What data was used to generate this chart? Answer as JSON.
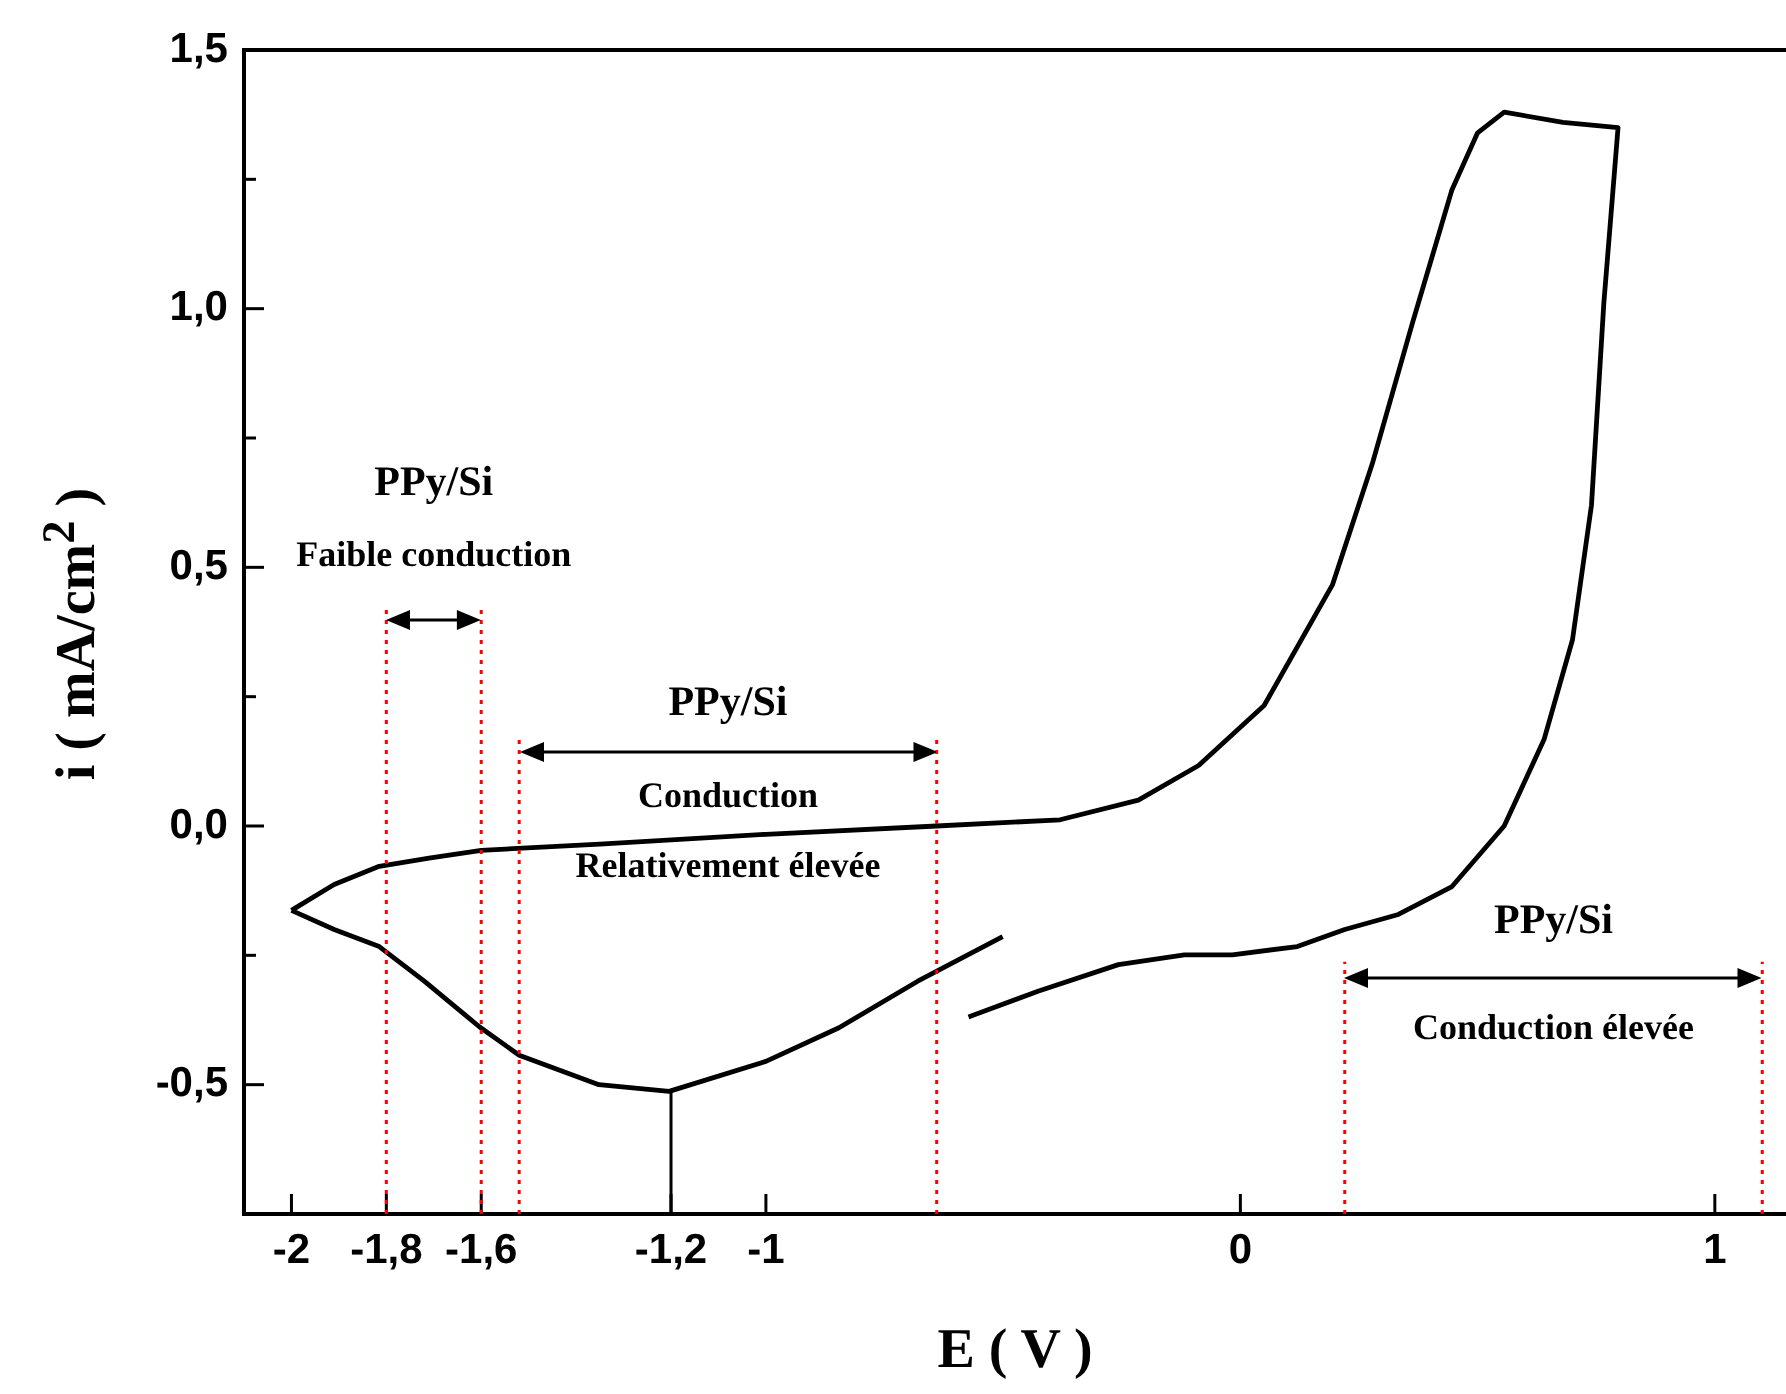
{
  "chart_data": {
    "type": "line",
    "xlabel": "E ( V )",
    "ylabel": "i ( mA/cm$^{2}$ )",
    "xlim": [
      -2.1,
      1.15
    ],
    "ylim": [
      -0.75,
      1.5
    ],
    "xticks": [
      -2,
      {
        "value": -1.8,
        "label": "-1,8"
      },
      {
        "value": -1.6,
        "label": "-1,6"
      },
      {
        "value": -1.2,
        "label": "-1,2"
      },
      -1,
      0,
      1
    ],
    "yticks": [
      {
        "value": -0.5,
        "label": "-0,5"
      },
      {
        "value": -0.25,
        "label": null
      },
      {
        "value": 0,
        "label": "0,0"
      },
      {
        "value": 0.25,
        "label": null
      },
      {
        "value": 0.5,
        "label": "0,5"
      },
      {
        "value": 0.75,
        "label": null
      },
      {
        "value": 1,
        "label": "1,0"
      },
      {
        "value": 1.25,
        "label": null
      },
      {
        "value": 1.5,
        "label": "1,5"
      }
    ],
    "marker": "none",
    "line_style": "solid",
    "series": [
      {
        "type": "line",
        "color": "#000000",
        "x": [
          -2,
          -1.91,
          -1.815,
          -1.71,
          -1.6,
          -1.35,
          -1,
          -0.64,
          -0.38,
          -0.215,
          -0.088,
          0.05,
          0.194,
          0.278,
          0.362,
          0.446,
          0.5,
          0.556,
          0.68,
          0.796,
          0.766,
          0.74,
          0.7,
          0.64,
          0.556,
          0.446,
          0.333,
          0.22,
          0.12,
          -0.017,
          -0.118,
          -0.257,
          -0.425,
          -0.573,
          -0.54,
          -0.501,
          -0.68,
          -0.846,
          -1,
          -1.204,
          -1.352,
          -1.52,
          -1.604,
          -1.72,
          -1.815,
          -1.91,
          -2
        ],
        "values": [
          -0.163,
          -0.113,
          -0.078,
          -0.062,
          -0.047,
          -0.035,
          -0.016,
          0,
          0.012,
          0.05,
          0.117,
          0.233,
          0.466,
          0.7,
          0.97,
          1.23,
          1.34,
          1.38,
          1.36,
          1.35,
          1.01,
          0.62,
          0.36,
          0.167,
          0,
          -0.117,
          -0.171,
          -0.2,
          -0.233,
          -0.249,
          -0.249,
          -0.268,
          -0.319,
          -0.369,
          null,
          -0.214,
          -0.3,
          -0.39,
          -0.455,
          -0.513,
          -0.5,
          -0.443,
          -0.388,
          -0.3,
          -0.233,
          -0.2,
          -0.163
        ]
      }
    ],
    "ref_lines": [
      {
        "axis": "x",
        "value": -1.8,
        "color": "#ff0000",
        "line_style": "dotted"
      },
      {
        "axis": "x",
        "value": -1.6,
        "color": "#ff0000",
        "line_style": "dotted"
      },
      {
        "axis": "x",
        "value": -1.52,
        "color": "#ff0000",
        "line_style": "dotted"
      },
      {
        "axis": "x",
        "value": -0.64,
        "color": "#ff0000",
        "line_style": "dotted"
      },
      {
        "axis": "x",
        "value": 0.22,
        "color": "#ff0000",
        "line_style": "dotted"
      },
      {
        "axis": "x",
        "value": 1.1,
        "color": "#ff0000",
        "line_style": "dotted"
      },
      {
        "axis": "x",
        "value": -1.2,
        "color": "#000000",
        "line_style": "solid"
      }
    ],
    "annotations": [
      "PPy/Si",
      "Faible conduction",
      "PPy/Si",
      "Conduction",
      "Relativement élevée",
      "PPy/Si",
      "Conduction élevée"
    ]
  }
}
